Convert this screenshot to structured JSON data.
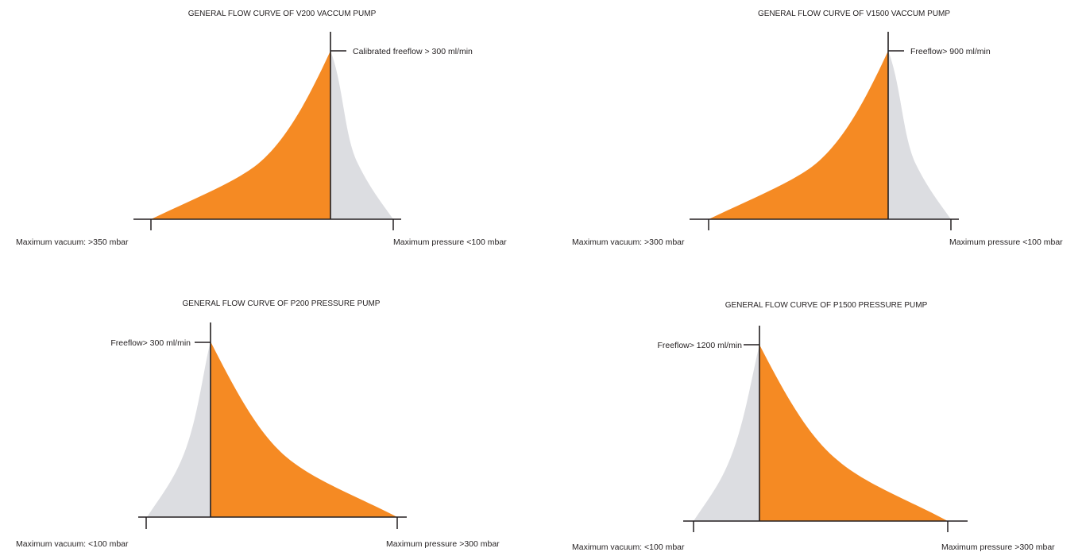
{
  "colors": {
    "orange": "#F58A23",
    "grey": "#DCDDE1",
    "ink": "#231F20"
  },
  "chart_data": [
    {
      "type": "area",
      "title": "GENERAL FLOW CURVE OF V200 VACCUM PUMP",
      "annotation": "Calibrated freeflow > 300 ml/min",
      "left_label": "Maximum vacuum: >350 mbar",
      "right_label": "Maximum pressure <100 mbar"
    },
    {
      "type": "area",
      "title": "GENERAL FLOW CURVE OF V1500 VACCUM PUMP",
      "annotation": "Freeflow> 900 ml/min",
      "left_label": "Maximum vacuum: >300 mbar",
      "right_label": "Maximum pressure <100 mbar"
    },
    {
      "type": "area",
      "title": "GENERAL FLOW CURVE OF P200 PRESSURE PUMP",
      "annotation": "Freeflow> 300 ml/min",
      "left_label": "Maximum vacuum: <100 mbar",
      "right_label": "Maximum pressure >300 mbar"
    },
    {
      "type": "area",
      "title": "GENERAL FLOW CURVE OF P1500 PRESSURE PUMP",
      "annotation": "Freeflow> 1200 ml/min",
      "left_label": "Maximum vacuum: <100 mbar",
      "right_label": "Maximum pressure >300 mbar"
    }
  ]
}
